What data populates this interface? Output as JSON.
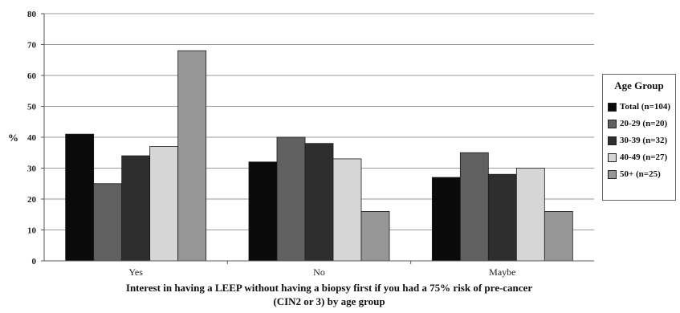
{
  "chart_data": {
    "type": "bar",
    "categories": [
      "Yes",
      "No",
      "Maybe"
    ],
    "series": [
      {
        "name": "Total (n=104)",
        "color": "#0a0a0a",
        "values": [
          41,
          32,
          27
        ]
      },
      {
        "name": "20-29 (n=20)",
        "color": "#606060",
        "values": [
          25,
          40,
          35
        ]
      },
      {
        "name": "30-39 (n=32)",
        "color": "#2e2e2e",
        "values": [
          34,
          38,
          28
        ]
      },
      {
        "name": "40-49 (n=27)",
        "color": "#d6d6d6",
        "values": [
          37,
          33,
          30
        ]
      },
      {
        "name": "50+ (n=25)",
        "color": "#969696",
        "values": [
          68,
          16,
          16
        ]
      }
    ],
    "ylim": [
      0,
      80
    ],
    "yticks": [
      0,
      10,
      20,
      30,
      40,
      50,
      60,
      70,
      80
    ],
    "ylabel": "%",
    "xlabel_line1": "Interest in having a LEEP without having a biopsy first if you had a 75% risk of pre-cancer",
    "xlabel_line2": "(CIN2 or 3) by age group",
    "legend_title": "Age Group",
    "legend_position": "right",
    "grid": true
  }
}
